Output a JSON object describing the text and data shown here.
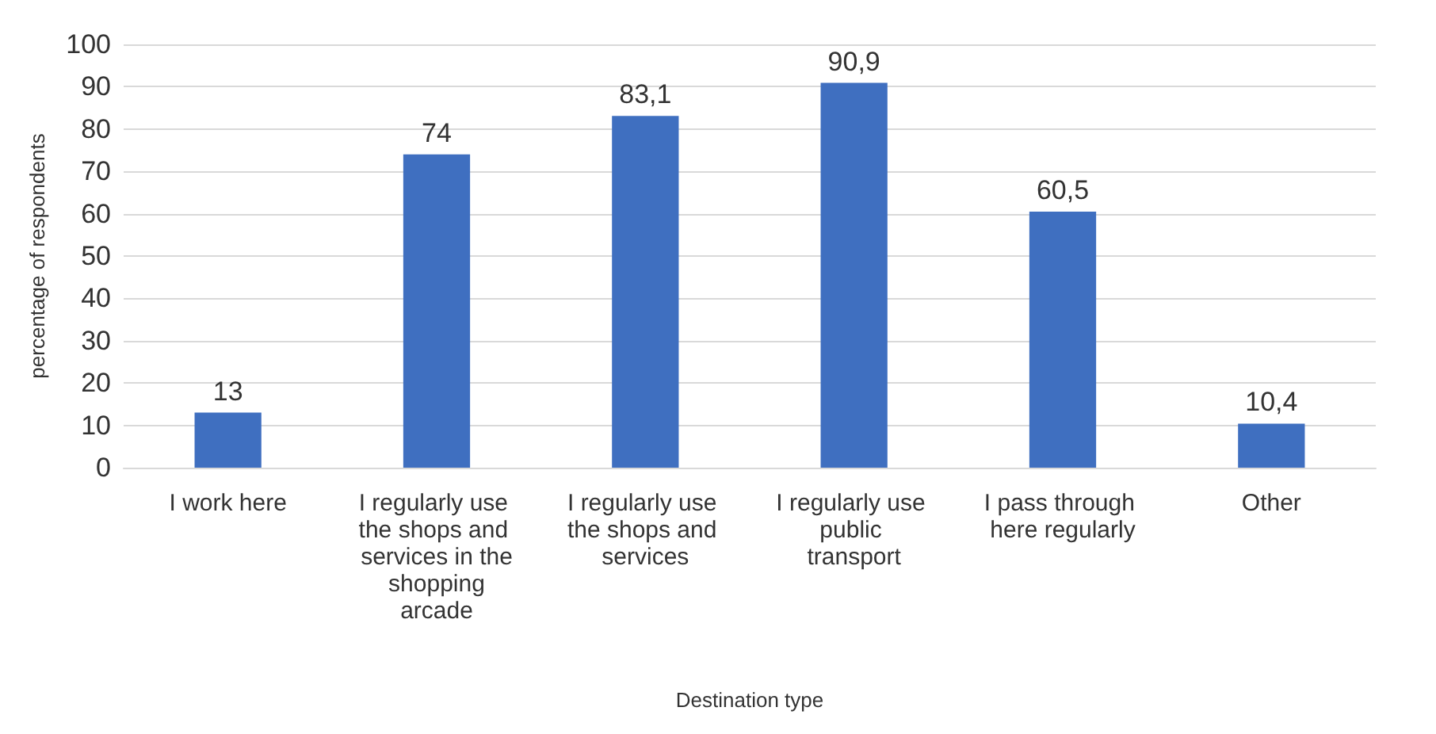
{
  "chart_data": {
    "type": "bar",
    "xlabel": "Destination type",
    "ylabel": "percentage of respondents",
    "categories": [
      "I work here",
      "I regularly use the shops and services in the shopping arcade",
      "I regularly use the shops and services",
      "I regularly use public transport",
      "I pass through here regularly",
      "Other"
    ],
    "values": [
      13,
      74,
      83.1,
      90.9,
      60.5,
      10.4
    ],
    "value_labels": [
      "13",
      "74",
      "83,1",
      "90,9",
      "60,5",
      "10,4"
    ],
    "color": "#3f6fc0",
    "ylim": [
      0,
      100
    ],
    "yticks": [
      0,
      10,
      20,
      30,
      40,
      50,
      60,
      70,
      80,
      90,
      100
    ],
    "grid": "y"
  }
}
